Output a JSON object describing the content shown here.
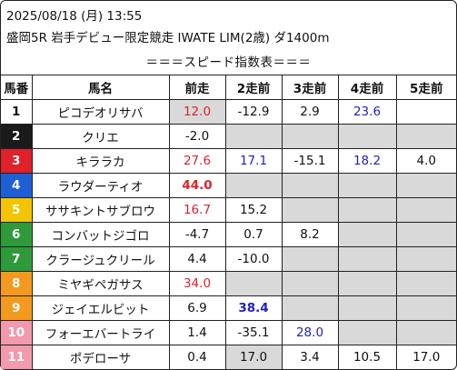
{
  "header": {
    "line1": "2025/08/18 (月) 13:55",
    "line2": "盛岡5R 岩手デビュー限定競走 IWATE LIM(2歳) ダ1400m"
  },
  "subtitle": "＝＝＝スピード指数表＝＝＝",
  "columns": [
    "馬番",
    "馬名",
    "前走",
    "2走前",
    "3走前",
    "4走前",
    "5走前"
  ],
  "horses": [
    {
      "num": "1",
      "num_bg": "#ffffff",
      "num_fg": "#111111",
      "name": "ピコデオリサバ",
      "v": [
        {
          "t": "12.0",
          "c": "red",
          "g": true
        },
        {
          "t": "-12.9",
          "c": "",
          "g": false
        },
        {
          "t": "2.9",
          "c": "",
          "g": false
        },
        {
          "t": "23.6",
          "c": "blue",
          "g": false
        },
        {
          "t": "",
          "c": "",
          "g": false
        }
      ]
    },
    {
      "num": "2",
      "num_bg": "#1a1a1a",
      "num_fg": "#ffffff",
      "name": "クリエ",
      "v": [
        {
          "t": "-2.0",
          "c": "",
          "g": false
        },
        {
          "t": "",
          "c": "",
          "g": true
        },
        {
          "t": "",
          "c": "",
          "g": true
        },
        {
          "t": "",
          "c": "",
          "g": true
        },
        {
          "t": "",
          "c": "",
          "g": true
        }
      ]
    },
    {
      "num": "3",
      "num_bg": "#e0202a",
      "num_fg": "#ffffff",
      "name": "キララカ",
      "v": [
        {
          "t": "27.6",
          "c": "red",
          "g": false
        },
        {
          "t": "17.1",
          "c": "blue",
          "g": false
        },
        {
          "t": "-15.1",
          "c": "",
          "g": false
        },
        {
          "t": "18.2",
          "c": "blue",
          "g": false
        },
        {
          "t": "4.0",
          "c": "",
          "g": false
        }
      ]
    },
    {
      "num": "4",
      "num_bg": "#1f5fd6",
      "num_fg": "#ffffff",
      "name": "ラウダーティオ",
      "v": [
        {
          "t": "44.0",
          "c": "bold-red",
          "g": false
        },
        {
          "t": "",
          "c": "",
          "g": true
        },
        {
          "t": "",
          "c": "",
          "g": true
        },
        {
          "t": "",
          "c": "",
          "g": true
        },
        {
          "t": "",
          "c": "",
          "g": true
        }
      ]
    },
    {
      "num": "5",
      "num_bg": "#f2c500",
      "num_fg": "#ffffff",
      "name": "ササキントサブロウ",
      "v": [
        {
          "t": "16.7",
          "c": "red",
          "g": false
        },
        {
          "t": "15.2",
          "c": "",
          "g": false
        },
        {
          "t": "",
          "c": "",
          "g": true
        },
        {
          "t": "",
          "c": "",
          "g": true
        },
        {
          "t": "",
          "c": "",
          "g": true
        }
      ]
    },
    {
      "num": "6",
      "num_bg": "#2e9a3a",
      "num_fg": "#ffffff",
      "name": "コンバットジゴロ",
      "v": [
        {
          "t": "-4.7",
          "c": "",
          "g": false
        },
        {
          "t": "0.7",
          "c": "",
          "g": false
        },
        {
          "t": "8.2",
          "c": "",
          "g": false
        },
        {
          "t": "",
          "c": "",
          "g": true
        },
        {
          "t": "",
          "c": "",
          "g": true
        }
      ]
    },
    {
      "num": "7",
      "num_bg": "#2e9a3a",
      "num_fg": "#ffffff",
      "name": "クラージュクリール",
      "v": [
        {
          "t": "4.4",
          "c": "",
          "g": false
        },
        {
          "t": "-10.0",
          "c": "",
          "g": false
        },
        {
          "t": "",
          "c": "",
          "g": true
        },
        {
          "t": "",
          "c": "",
          "g": true
        },
        {
          "t": "",
          "c": "",
          "g": true
        }
      ]
    },
    {
      "num": "8",
      "num_bg": "#f39a1e",
      "num_fg": "#ffffff",
      "name": "ミヤギペガサス",
      "v": [
        {
          "t": "34.0",
          "c": "red",
          "g": false
        },
        {
          "t": "",
          "c": "",
          "g": true
        },
        {
          "t": "",
          "c": "",
          "g": true
        },
        {
          "t": "",
          "c": "",
          "g": true
        },
        {
          "t": "",
          "c": "",
          "g": true
        }
      ]
    },
    {
      "num": "9",
      "num_bg": "#f39a1e",
      "num_fg": "#ffffff",
      "name": "ジェイエルビット",
      "v": [
        {
          "t": "6.9",
          "c": "",
          "g": false
        },
        {
          "t": "38.4",
          "c": "bold-blue",
          "g": false
        },
        {
          "t": "",
          "c": "",
          "g": true
        },
        {
          "t": "",
          "c": "",
          "g": true
        },
        {
          "t": "",
          "c": "",
          "g": true
        }
      ]
    },
    {
      "num": "10",
      "num_bg": "#f29aac",
      "num_fg": "#ffffff",
      "name": "フォーエバートライ",
      "v": [
        {
          "t": "1.4",
          "c": "",
          "g": false
        },
        {
          "t": "-35.1",
          "c": "",
          "g": false
        },
        {
          "t": "28.0",
          "c": "blue",
          "g": false
        },
        {
          "t": "",
          "c": "",
          "g": true
        },
        {
          "t": "",
          "c": "",
          "g": true
        }
      ]
    },
    {
      "num": "11",
      "num_bg": "#f29aac",
      "num_fg": "#ffffff",
      "name": "ポデローサ",
      "v": [
        {
          "t": "0.4",
          "c": "",
          "g": false
        },
        {
          "t": "17.0",
          "c": "",
          "g": true
        },
        {
          "t": "3.4",
          "c": "",
          "g": false
        },
        {
          "t": "10.5",
          "c": "",
          "g": false
        },
        {
          "t": "17.0",
          "c": "",
          "g": false
        }
      ]
    }
  ]
}
